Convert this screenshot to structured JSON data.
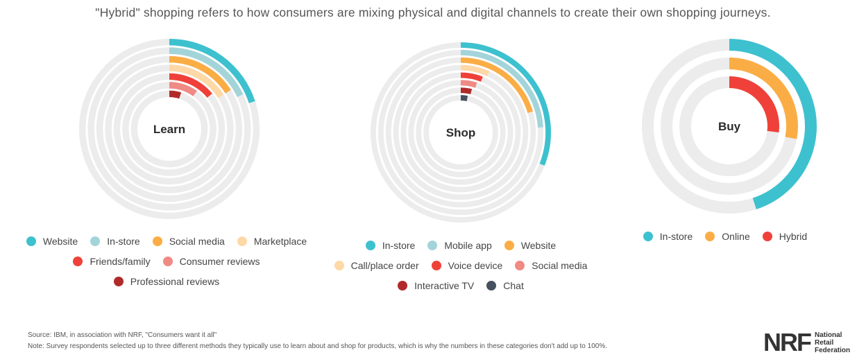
{
  "title": "\"Hybrid\" shopping refers to how consumers are mixing physical and digital channels to create their own shopping journeys.",
  "chart_data": [
    {
      "type": "radial-bar",
      "center_label": "Learn",
      "series": [
        {
          "name": "Website",
          "value": 20,
          "color": "#3dc1cf"
        },
        {
          "name": "In-store",
          "value": 18,
          "color": "#a3d4da"
        },
        {
          "name": "Social media",
          "value": 16,
          "color": "#fbad45"
        },
        {
          "name": "Marketplace",
          "value": 16,
          "color": "#fed8a6"
        },
        {
          "name": "Friends/family",
          "value": 14,
          "color": "#ef4139"
        },
        {
          "name": "Consumer reviews",
          "value": 10,
          "color": "#f08a85"
        },
        {
          "name": "Professional reviews",
          "value": 5,
          "color": "#b12a2a"
        }
      ],
      "legend_rows": [
        [
          0,
          1,
          2,
          3
        ],
        [
          4,
          5
        ],
        [
          6
        ]
      ],
      "max": 100
    },
    {
      "type": "radial-bar",
      "center_label": "Shop",
      "series": [
        {
          "name": "In-store",
          "value": 31,
          "color": "#3dc1cf"
        },
        {
          "name": "Mobile app",
          "value": 24,
          "color": "#a3d4da"
        },
        {
          "name": "Website",
          "value": 20.5,
          "color": "#fbad45"
        },
        {
          "name": "Call/place order",
          "value": 7,
          "color": "#fed8a6"
        },
        {
          "name": "Voice device",
          "value": 6,
          "color": "#ef4139"
        },
        {
          "name": "Social media",
          "value": 5,
          "color": "#f08a85"
        },
        {
          "name": "Interactive TV",
          "value": 4,
          "color": "#b12a2a"
        },
        {
          "name": "Chat",
          "value": 3,
          "color": "#46505f"
        }
      ],
      "legend_rows": [
        [
          0,
          1,
          2
        ],
        [
          3,
          4,
          5
        ],
        [
          6,
          7
        ]
      ],
      "max": 100
    },
    {
      "type": "radial-bar",
      "center_label": "Buy",
      "series": [
        {
          "name": "In-store",
          "value": 45,
          "color": "#3dc1cf"
        },
        {
          "name": "Online",
          "value": 28,
          "color": "#fbad45"
        },
        {
          "name": "Hybrid",
          "value": 27,
          "color": "#ef4139"
        }
      ],
      "legend_rows": [
        [
          0,
          1,
          2
        ]
      ],
      "max": 100
    }
  ],
  "footer": {
    "source": "Source: IBM, in association with NRF, \"Consumers want it all\"",
    "note": "Note: Survey respondents selected up to three different methods they typically use to learn about and shop for products, which is why the numbers in these categories don't add up to 100%."
  },
  "logo": {
    "mark": "NRF",
    "lines": [
      "National",
      "Retail",
      "Federation"
    ]
  },
  "track_color": "#ececec"
}
